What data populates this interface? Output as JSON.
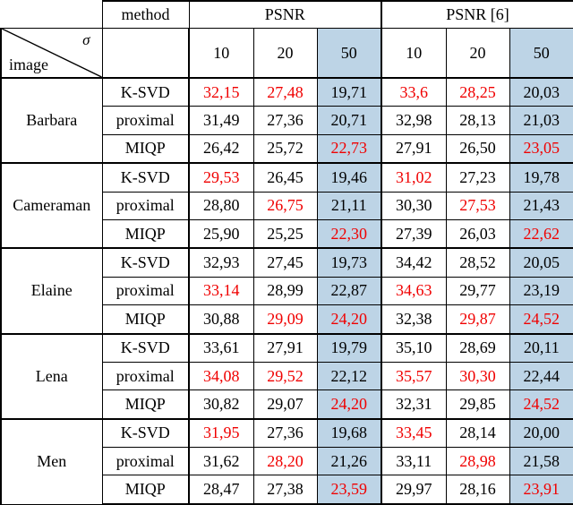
{
  "colors": {
    "highlight_column": "#bdd4e6",
    "red_value": "#f00000",
    "border": "#000000",
    "text": "#000000",
    "background": "#ffffff"
  },
  "header": {
    "method_label": "method",
    "psnr_label": "PSNR",
    "psnr_ref_label": "PSNR [6]",
    "corner": {
      "sigma_symbol": "σ",
      "image_label": "image"
    },
    "sigma_levels": [
      "10",
      "20",
      "50",
      "10",
      "20",
      "50"
    ]
  },
  "table": {
    "groups": [
      {
        "image": "Barbara",
        "rows": [
          {
            "method": "K-SVD",
            "values": [
              {
                "v": "32,15",
                "red": true
              },
              {
                "v": "27,48",
                "red": true
              },
              {
                "v": "19,71",
                "red": false
              },
              {
                "v": "33,6",
                "red": true
              },
              {
                "v": "28,25",
                "red": true
              },
              {
                "v": "20,03",
                "red": false
              }
            ]
          },
          {
            "method": "proximal",
            "values": [
              {
                "v": "31,49",
                "red": false
              },
              {
                "v": "27,36",
                "red": false
              },
              {
                "v": "20,71",
                "red": false
              },
              {
                "v": "32,98",
                "red": false
              },
              {
                "v": "28,13",
                "red": false
              },
              {
                "v": "21,03",
                "red": false
              }
            ]
          },
          {
            "method": "MIQP",
            "values": [
              {
                "v": "26,42",
                "red": false
              },
              {
                "v": "25,72",
                "red": false
              },
              {
                "v": "22,73",
                "red": true
              },
              {
                "v": "27,91",
                "red": false
              },
              {
                "v": "26,50",
                "red": false
              },
              {
                "v": "23,05",
                "red": true
              }
            ]
          }
        ]
      },
      {
        "image": "Cameraman",
        "rows": [
          {
            "method": "K-SVD",
            "values": [
              {
                "v": "29,53",
                "red": true
              },
              {
                "v": "26,45",
                "red": false
              },
              {
                "v": "19,46",
                "red": false
              },
              {
                "v": "31,02",
                "red": true
              },
              {
                "v": "27,23",
                "red": false
              },
              {
                "v": "19,78",
                "red": false
              }
            ]
          },
          {
            "method": "proximal",
            "values": [
              {
                "v": "28,80",
                "red": false
              },
              {
                "v": "26,75",
                "red": true
              },
              {
                "v": "21,11",
                "red": false
              },
              {
                "v": "30,30",
                "red": false
              },
              {
                "v": "27,53",
                "red": true
              },
              {
                "v": "21,43",
                "red": false
              }
            ]
          },
          {
            "method": "MIQP",
            "values": [
              {
                "v": "25,90",
                "red": false
              },
              {
                "v": "25,25",
                "red": false
              },
              {
                "v": "22,30",
                "red": true
              },
              {
                "v": "27,39",
                "red": false
              },
              {
                "v": "26,03",
                "red": false
              },
              {
                "v": "22,62",
                "red": true
              }
            ]
          }
        ]
      },
      {
        "image": "Elaine",
        "rows": [
          {
            "method": "K-SVD",
            "values": [
              {
                "v": "32,93",
                "red": false
              },
              {
                "v": "27,45",
                "red": false
              },
              {
                "v": "19,73",
                "red": false
              },
              {
                "v": "34,42",
                "red": false
              },
              {
                "v": "28,52",
                "red": false
              },
              {
                "v": "20,05",
                "red": false
              }
            ]
          },
          {
            "method": "proximal",
            "values": [
              {
                "v": "33,14",
                "red": true
              },
              {
                "v": "28,99",
                "red": false
              },
              {
                "v": "22,87",
                "red": false
              },
              {
                "v": "34,63",
                "red": true
              },
              {
                "v": "29,77",
                "red": false
              },
              {
                "v": "23,19",
                "red": false
              }
            ]
          },
          {
            "method": "MIQP",
            "values": [
              {
                "v": "30,88",
                "red": false
              },
              {
                "v": "29,09",
                "red": true
              },
              {
                "v": "24,20",
                "red": true
              },
              {
                "v": "32,38",
                "red": false
              },
              {
                "v": "29,87",
                "red": true
              },
              {
                "v": "24,52",
                "red": true
              }
            ]
          }
        ]
      },
      {
        "image": "Lena",
        "rows": [
          {
            "method": "K-SVD",
            "values": [
              {
                "v": "33,61",
                "red": false
              },
              {
                "v": "27,91",
                "red": false
              },
              {
                "v": "19,79",
                "red": false
              },
              {
                "v": "35,10",
                "red": false
              },
              {
                "v": "28,69",
                "red": false
              },
              {
                "v": "20,11",
                "red": false
              }
            ]
          },
          {
            "method": "proximal",
            "values": [
              {
                "v": "34,08",
                "red": true
              },
              {
                "v": "29,52",
                "red": true
              },
              {
                "v": "22,12",
                "red": false
              },
              {
                "v": "35,57",
                "red": true
              },
              {
                "v": "30,30",
                "red": true
              },
              {
                "v": "22,44",
                "red": false
              }
            ]
          },
          {
            "method": "MIQP",
            "values": [
              {
                "v": "30,82",
                "red": false
              },
              {
                "v": "29,07",
                "red": false
              },
              {
                "v": "24,20",
                "red": true
              },
              {
                "v": "32,31",
                "red": false
              },
              {
                "v": "29,85",
                "red": false
              },
              {
                "v": "24,52",
                "red": true
              }
            ]
          }
        ]
      },
      {
        "image": "Men",
        "rows": [
          {
            "method": "K-SVD",
            "values": [
              {
                "v": "31,95",
                "red": true
              },
              {
                "v": "27,36",
                "red": false
              },
              {
                "v": "19,68",
                "red": false
              },
              {
                "v": "33,45",
                "red": true
              },
              {
                "v": "28,14",
                "red": false
              },
              {
                "v": "20,00",
                "red": false
              }
            ]
          },
          {
            "method": "proximal",
            "values": [
              {
                "v": "31,62",
                "red": false
              },
              {
                "v": "28,20",
                "red": true
              },
              {
                "v": "21,26",
                "red": false
              },
              {
                "v": "33,11",
                "red": false
              },
              {
                "v": "28,98",
                "red": true
              },
              {
                "v": "21,58",
                "red": false
              }
            ]
          },
          {
            "method": "MIQP",
            "values": [
              {
                "v": "28,47",
                "red": false
              },
              {
                "v": "27,38",
                "red": false
              },
              {
                "v": "23,59",
                "red": true
              },
              {
                "v": "29,97",
                "red": false
              },
              {
                "v": "28,16",
                "red": false
              },
              {
                "v": "23,91",
                "red": true
              }
            ]
          }
        ]
      }
    ]
  }
}
